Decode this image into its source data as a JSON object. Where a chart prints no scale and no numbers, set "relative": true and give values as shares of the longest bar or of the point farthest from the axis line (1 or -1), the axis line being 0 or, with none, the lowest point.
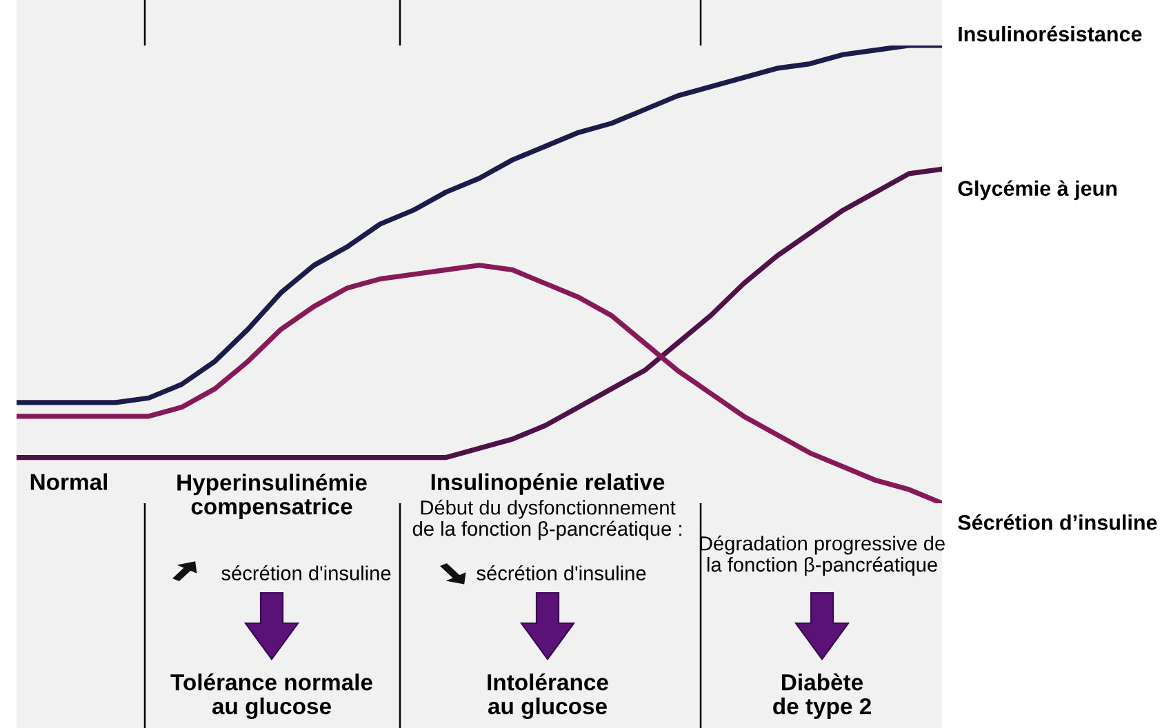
{
  "chart_data": {
    "type": "line",
    "relative": true,
    "categories": [
      null,
      null,
      null,
      null,
      null,
      null,
      null,
      null,
      null,
      null,
      null,
      null,
      null,
      null,
      null,
      null,
      null,
      null,
      null,
      null,
      null,
      null,
      null,
      null,
      null,
      null,
      null,
      null,
      null
    ],
    "series": [
      {
        "name": "Insulinorésistance",
        "color": "#1b1c4a",
        "values": [
          0.22,
          0.22,
          0.22,
          0.22,
          0.23,
          0.26,
          0.31,
          0.38,
          0.46,
          0.52,
          0.56,
          0.61,
          0.64,
          0.68,
          0.71,
          0.75,
          0.78,
          0.81,
          0.83,
          0.86,
          0.89,
          0.91,
          0.93,
          0.95,
          0.96,
          0.98,
          0.99,
          1.0,
          1.0
        ]
      },
      {
        "name": "Glycémie à jeun",
        "color": "#4e1248",
        "values": [
          0.1,
          0.1,
          0.1,
          0.1,
          0.1,
          0.1,
          0.1,
          0.1,
          0.1,
          0.1,
          0.1,
          0.1,
          0.1,
          0.1,
          0.12,
          0.14,
          0.17,
          0.21,
          0.25,
          0.29,
          0.35,
          0.41,
          0.48,
          0.54,
          0.59,
          0.64,
          0.68,
          0.72,
          0.73
        ]
      },
      {
        "name": "Sécrétion d’insuline",
        "color": "#861a58",
        "values": [
          0.19,
          0.19,
          0.19,
          0.19,
          0.19,
          0.21,
          0.25,
          0.31,
          0.38,
          0.43,
          0.47,
          0.49,
          0.5,
          0.51,
          0.52,
          0.51,
          0.48,
          0.45,
          0.41,
          0.35,
          0.29,
          0.24,
          0.19,
          0.15,
          0.11,
          0.08,
          0.05,
          0.03,
          0.0
        ]
      }
    ],
    "annotations": [
      "Normal",
      "Hyperinsulinémie\ncompensatrice",
      "sécrétion d'insuline",
      "Tolérance normale\nau glucose",
      "Insulinopénie relative",
      "Début du dysfonctionnement\nde la fonction β-pancréatique :",
      "sécrétion d'insuline",
      "Intolérance\nau glucose",
      "Dégradation progressive de\nla fonction β-pancréatique",
      "Diabète\nde type 2"
    ],
    "legend": false,
    "line_style": "solid",
    "marker": "none"
  }
}
